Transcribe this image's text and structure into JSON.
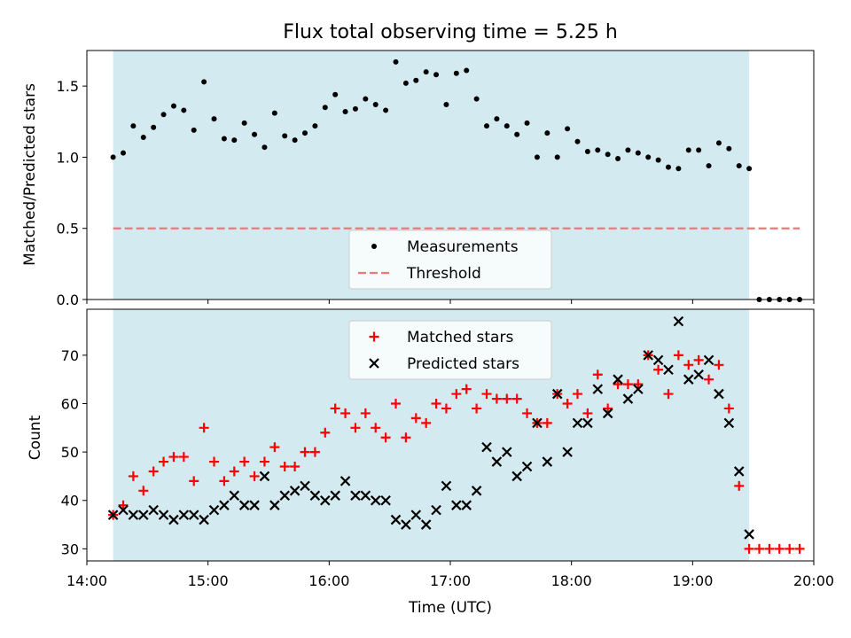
{
  "chart_data": [
    {
      "type": "scatter",
      "title": "Flux total observing time = 5.25 h",
      "xlabel": "",
      "ylabel": "Matched/Predicted stars",
      "x_unit": "time (UTC, HH:MM)",
      "xlim": [
        "14:00",
        "20:00"
      ],
      "ylim": [
        0,
        1.75
      ],
      "yticks": [
        "0.0",
        "0.5",
        "1.0",
        "1.5"
      ],
      "shaded_interval": [
        "14:13",
        "19:28"
      ],
      "shade_color": "#d3eaf0",
      "legend": {
        "placement": "lower-center",
        "entries": [
          "Measurements",
          "Threshold"
        ]
      },
      "series": [
        {
          "name": "Measurements",
          "marker": "dot",
          "color": "#000000",
          "points": [
            [
              "14:13",
              1.0
            ],
            [
              "14:18",
              1.03
            ],
            [
              "14:23",
              1.22
            ],
            [
              "14:28",
              1.14
            ],
            [
              "14:33",
              1.21
            ],
            [
              "14:38",
              1.3
            ],
            [
              "14:43",
              1.36
            ],
            [
              "14:48",
              1.33
            ],
            [
              "14:53",
              1.19
            ],
            [
              "14:58",
              1.53
            ],
            [
              "15:03",
              1.27
            ],
            [
              "15:08",
              1.13
            ],
            [
              "15:13",
              1.12
            ],
            [
              "15:18",
              1.24
            ],
            [
              "15:23",
              1.16
            ],
            [
              "15:28",
              1.07
            ],
            [
              "15:33",
              1.31
            ],
            [
              "15:38",
              1.15
            ],
            [
              "15:43",
              1.12
            ],
            [
              "15:48",
              1.17
            ],
            [
              "15:53",
              1.22
            ],
            [
              "15:58",
              1.35
            ],
            [
              "16:03",
              1.44
            ],
            [
              "16:08",
              1.32
            ],
            [
              "16:13",
              1.34
            ],
            [
              "16:18",
              1.41
            ],
            [
              "16:23",
              1.37
            ],
            [
              "16:28",
              1.33
            ],
            [
              "16:33",
              1.67
            ],
            [
              "16:38",
              1.52
            ],
            [
              "16:43",
              1.54
            ],
            [
              "16:48",
              1.6
            ],
            [
              "16:53",
              1.58
            ],
            [
              "16:58",
              1.37
            ],
            [
              "17:03",
              1.59
            ],
            [
              "17:08",
              1.61
            ],
            [
              "17:13",
              1.41
            ],
            [
              "17:18",
              1.22
            ],
            [
              "17:23",
              1.27
            ],
            [
              "17:28",
              1.22
            ],
            [
              "17:33",
              1.16
            ],
            [
              "17:38",
              1.24
            ],
            [
              "17:43",
              1.0
            ],
            [
              "17:48",
              1.17
            ],
            [
              "17:53",
              1.0
            ],
            [
              "17:58",
              1.2
            ],
            [
              "18:03",
              1.11
            ],
            [
              "18:08",
              1.04
            ],
            [
              "18:13",
              1.05
            ],
            [
              "18:18",
              1.02
            ],
            [
              "18:23",
              0.99
            ],
            [
              "18:28",
              1.05
            ],
            [
              "18:33",
              1.03
            ],
            [
              "18:38",
              1.0
            ],
            [
              "18:43",
              0.98
            ],
            [
              "18:48",
              0.93
            ],
            [
              "18:53",
              0.92
            ],
            [
              "18:58",
              1.05
            ],
            [
              "19:03",
              1.05
            ],
            [
              "19:08",
              0.94
            ],
            [
              "19:13",
              1.1
            ],
            [
              "19:18",
              1.06
            ],
            [
              "19:23",
              0.94
            ],
            [
              "19:28",
              0.92
            ],
            [
              "19:33",
              0.0
            ],
            [
              "19:38",
              0.0
            ],
            [
              "19:43",
              0.0
            ],
            [
              "19:48",
              0.0
            ],
            [
              "19:53",
              0.0
            ]
          ]
        },
        {
          "name": "Threshold",
          "type": "hline",
          "style": "dashed",
          "color": "#f07878",
          "y": 0.5,
          "x_range": [
            "14:13",
            "19:53"
          ]
        }
      ]
    },
    {
      "type": "scatter",
      "title": "",
      "xlabel": "Time (UTC)",
      "ylabel": "Count",
      "x_unit": "time (UTC, HH:MM)",
      "xlim": [
        "14:00",
        "20:00"
      ],
      "ylim": [
        27.5,
        79.5
      ],
      "xticks": [
        "14:00",
        "15:00",
        "16:00",
        "17:00",
        "18:00",
        "19:00",
        "20:00"
      ],
      "yticks": [
        "30",
        "40",
        "50",
        "60",
        "70"
      ],
      "shaded_interval": [
        "14:13",
        "19:28"
      ],
      "shade_color": "#d3eaf0",
      "legend": {
        "placement": "upper-center",
        "entries": [
          "Matched stars",
          "Predicted stars"
        ]
      },
      "series": [
        {
          "name": "Matched stars",
          "marker": "plus",
          "color": "#ff0000",
          "points": [
            [
              "14:13",
              37
            ],
            [
              "14:18",
              39
            ],
            [
              "14:23",
              45
            ],
            [
              "14:28",
              42
            ],
            [
              "14:33",
              46
            ],
            [
              "14:38",
              48
            ],
            [
              "14:43",
              49
            ],
            [
              "14:48",
              49
            ],
            [
              "14:53",
              44
            ],
            [
              "14:58",
              55
            ],
            [
              "15:03",
              48
            ],
            [
              "15:08",
              44
            ],
            [
              "15:13",
              46
            ],
            [
              "15:18",
              48
            ],
            [
              "15:23",
              45
            ],
            [
              "15:28",
              48
            ],
            [
              "15:33",
              51
            ],
            [
              "15:38",
              47
            ],
            [
              "15:43",
              47
            ],
            [
              "15:48",
              50
            ],
            [
              "15:53",
              50
            ],
            [
              "15:58",
              54
            ],
            [
              "16:03",
              59
            ],
            [
              "16:08",
              58
            ],
            [
              "16:13",
              55
            ],
            [
              "16:18",
              58
            ],
            [
              "16:23",
              55
            ],
            [
              "16:28",
              53
            ],
            [
              "16:33",
              60
            ],
            [
              "16:38",
              53
            ],
            [
              "16:43",
              57
            ],
            [
              "16:48",
              56
            ],
            [
              "16:53",
              60
            ],
            [
              "16:58",
              59
            ],
            [
              "17:03",
              62
            ],
            [
              "17:08",
              63
            ],
            [
              "17:13",
              59
            ],
            [
              "17:18",
              62
            ],
            [
              "17:23",
              61
            ],
            [
              "17:28",
              61
            ],
            [
              "17:33",
              61
            ],
            [
              "17:38",
              58
            ],
            [
              "17:43",
              56
            ],
            [
              "17:48",
              56
            ],
            [
              "17:53",
              62
            ],
            [
              "17:58",
              60
            ],
            [
              "18:03",
              62
            ],
            [
              "18:08",
              58
            ],
            [
              "18:13",
              66
            ],
            [
              "18:18",
              59
            ],
            [
              "18:23",
              64
            ],
            [
              "18:28",
              64
            ],
            [
              "18:33",
              64
            ],
            [
              "18:38",
              70
            ],
            [
              "18:43",
              67
            ],
            [
              "18:48",
              62
            ],
            [
              "18:53",
              70
            ],
            [
              "18:58",
              68
            ],
            [
              "19:03",
              69
            ],
            [
              "19:08",
              65
            ],
            [
              "19:13",
              68
            ],
            [
              "19:18",
              59
            ],
            [
              "19:23",
              43
            ],
            [
              "19:28",
              30
            ],
            [
              "19:33",
              30
            ],
            [
              "19:38",
              30
            ],
            [
              "19:43",
              30
            ],
            [
              "19:48",
              30
            ],
            [
              "19:53",
              30
            ]
          ]
        },
        {
          "name": "Predicted stars",
          "marker": "x",
          "color": "#000000",
          "points": [
            [
              "14:13",
              37
            ],
            [
              "14:18",
              38
            ],
            [
              "14:23",
              37
            ],
            [
              "14:28",
              37
            ],
            [
              "14:33",
              38
            ],
            [
              "14:38",
              37
            ],
            [
              "14:43",
              36
            ],
            [
              "14:48",
              37
            ],
            [
              "14:53",
              37
            ],
            [
              "14:58",
              36
            ],
            [
              "15:03",
              38
            ],
            [
              "15:08",
              39
            ],
            [
              "15:13",
              41
            ],
            [
              "15:18",
              39
            ],
            [
              "15:23",
              39
            ],
            [
              "15:28",
              45
            ],
            [
              "15:33",
              39
            ],
            [
              "15:38",
              41
            ],
            [
              "15:43",
              42
            ],
            [
              "15:48",
              43
            ],
            [
              "15:53",
              41
            ],
            [
              "15:58",
              40
            ],
            [
              "16:03",
              41
            ],
            [
              "16:08",
              44
            ],
            [
              "16:13",
              41
            ],
            [
              "16:18",
              41
            ],
            [
              "16:23",
              40
            ],
            [
              "16:28",
              40
            ],
            [
              "16:33",
              36
            ],
            [
              "16:38",
              35
            ],
            [
              "16:43",
              37
            ],
            [
              "16:48",
              35
            ],
            [
              "16:53",
              38
            ],
            [
              "16:58",
              43
            ],
            [
              "17:03",
              39
            ],
            [
              "17:08",
              39
            ],
            [
              "17:13",
              42
            ],
            [
              "17:18",
              51
            ],
            [
              "17:23",
              48
            ],
            [
              "17:28",
              50
            ],
            [
              "17:33",
              45
            ],
            [
              "17:38",
              47
            ],
            [
              "17:43",
              56
            ],
            [
              "17:48",
              48
            ],
            [
              "17:53",
              62
            ],
            [
              "17:58",
              50
            ],
            [
              "18:03",
              56
            ],
            [
              "18:08",
              56
            ],
            [
              "18:13",
              63
            ],
            [
              "18:18",
              58
            ],
            [
              "18:23",
              65
            ],
            [
              "18:28",
              61
            ],
            [
              "18:33",
              63
            ],
            [
              "18:38",
              70
            ],
            [
              "18:43",
              69
            ],
            [
              "18:48",
              67
            ],
            [
              "18:53",
              77
            ],
            [
              "18:58",
              65
            ],
            [
              "19:03",
              66
            ],
            [
              "19:08",
              69
            ],
            [
              "19:13",
              62
            ],
            [
              "19:18",
              56
            ],
            [
              "19:23",
              46
            ],
            [
              "19:28",
              33
            ]
          ]
        }
      ]
    }
  ]
}
